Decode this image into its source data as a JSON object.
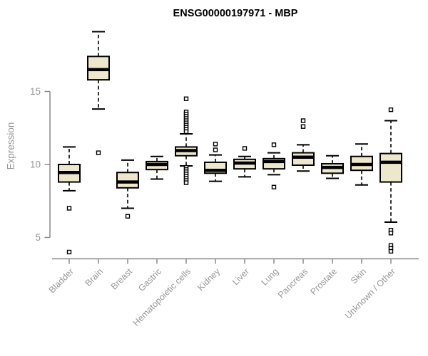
{
  "title": "ENSG00000197971 - MBP",
  "chart_data": {
    "type": "boxplot",
    "title": "ENSG00000197971 - MBP",
    "ylabel": "Expression",
    "xlabel": "",
    "yticks": [
      5,
      10,
      15
    ],
    "ylim": [
      3.6,
      19.6
    ],
    "grid": false,
    "legend": "none",
    "categories": [
      "Bladder",
      "Brain",
      "Breast",
      "Gastric",
      "Hematopoietic cells",
      "Kidney",
      "Liver",
      "Lung",
      "Pancreas",
      "Prostate",
      "Skin",
      "Unknown / Other"
    ],
    "series": [
      {
        "name": "Bladder",
        "whisker_low": 8.2,
        "q1": 8.8,
        "median": 9.45,
        "q3": 10.0,
        "whisker_high": 11.2,
        "outliers": [
          7.0,
          4.0
        ]
      },
      {
        "name": "Brain",
        "whisker_low": 13.8,
        "q1": 15.8,
        "median": 16.5,
        "q3": 17.4,
        "whisker_high": 19.1,
        "outliers": [
          10.8
        ]
      },
      {
        "name": "Breast",
        "whisker_low": 7.0,
        "q1": 8.4,
        "median": 8.8,
        "q3": 9.45,
        "whisker_high": 10.3,
        "outliers": [
          6.45
        ]
      },
      {
        "name": "Gastric",
        "whisker_low": 9.0,
        "q1": 9.65,
        "median": 10.0,
        "q3": 10.2,
        "whisker_high": 10.55,
        "outliers": []
      },
      {
        "name": "Hematopoietic cells",
        "whisker_low": 9.9,
        "q1": 10.6,
        "median": 10.95,
        "q3": 11.2,
        "whisker_high": 12.1,
        "outliers": [
          14.5,
          13.6,
          13.45,
          13.3,
          13.15,
          13.0,
          12.85,
          12.7,
          12.55,
          12.4,
          12.25,
          9.8,
          9.65,
          9.5,
          9.35,
          9.2,
          9.05,
          8.9,
          8.75
        ]
      },
      {
        "name": "Kidney",
        "whisker_low": 8.85,
        "q1": 9.4,
        "median": 9.6,
        "q3": 10.15,
        "whisker_high": 10.65,
        "outliers": [
          11.4,
          11.0
        ]
      },
      {
        "name": "Liver",
        "whisker_low": 9.15,
        "q1": 9.7,
        "median": 10.1,
        "q3": 10.35,
        "whisker_high": 10.55,
        "outliers": [
          11.1
        ]
      },
      {
        "name": "Lung",
        "whisker_low": 9.3,
        "q1": 9.7,
        "median": 10.2,
        "q3": 10.4,
        "whisker_high": 10.8,
        "outliers": [
          11.35,
          8.45
        ]
      },
      {
        "name": "Pancreas",
        "whisker_low": 9.55,
        "q1": 9.95,
        "median": 10.5,
        "q3": 10.8,
        "whisker_high": 11.35,
        "outliers": [
          13.0,
          12.6
        ]
      },
      {
        "name": "Prostate",
        "whisker_low": 9.05,
        "q1": 9.4,
        "median": 9.8,
        "q3": 10.05,
        "whisker_high": 10.6,
        "outliers": []
      },
      {
        "name": "Skin",
        "whisker_low": 8.6,
        "q1": 9.6,
        "median": 10.0,
        "q3": 10.55,
        "whisker_high": 11.4,
        "outliers": []
      },
      {
        "name": "Unknown / Other",
        "whisker_low": 6.05,
        "q1": 8.8,
        "median": 10.15,
        "q3": 10.75,
        "whisker_high": 13.0,
        "outliers": [
          13.75,
          5.5,
          5.3,
          4.45,
          4.25,
          4.05
        ]
      }
    ],
    "colors": {
      "box_fill": "#EDE7CC",
      "box_stroke": "#000000",
      "median": "#000000",
      "axis_line": "#8a8a8a",
      "tick_text": "#979797",
      "title_text": "#000000",
      "background": "#ffffff"
    }
  }
}
